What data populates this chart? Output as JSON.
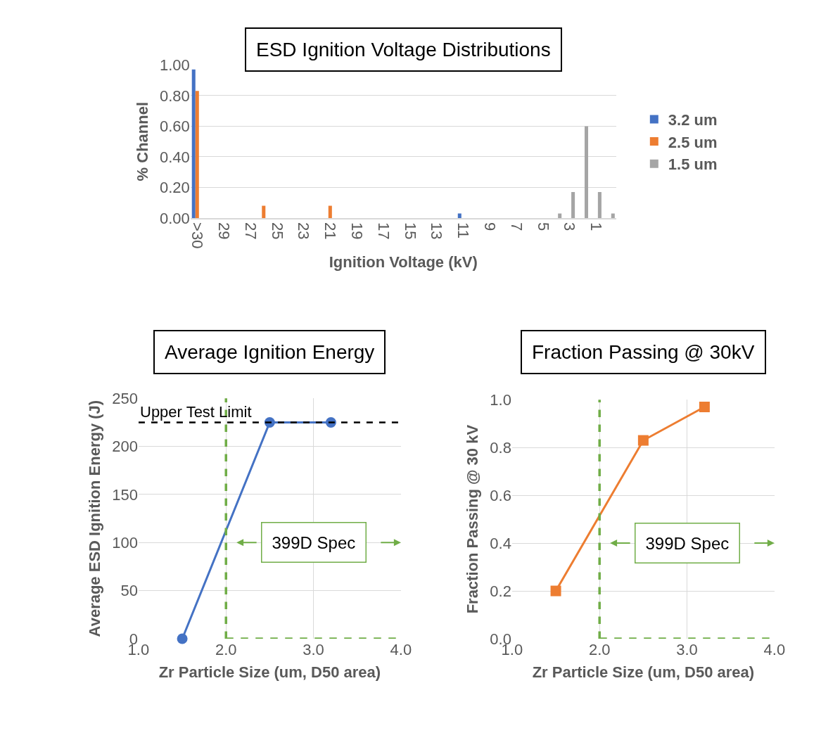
{
  "chart_data": [
    {
      "type": "bar",
      "title": "ESD Ignition Voltage Distributions",
      "xlabel": "Ignition Voltage (kV)",
      "ylabel": "% Channel",
      "categories": [
        ">30",
        null,
        "29",
        null,
        "27",
        null,
        "25",
        null,
        "23",
        null,
        "21",
        null,
        "19",
        null,
        "17",
        null,
        "15",
        null,
        "13",
        null,
        "11",
        null,
        "9",
        null,
        "7",
        null,
        "5",
        null,
        "3",
        null,
        "1",
        null
      ],
      "series": [
        {
          "name": "3.2 um",
          "color": "#4472c4",
          "values": [
            0.97,
            0,
            0,
            0,
            0,
            0,
            0,
            0,
            0,
            0,
            0,
            0,
            0,
            0,
            0,
            0,
            0,
            0,
            0,
            0,
            0.03,
            0,
            0,
            0,
            0,
            0,
            0,
            0,
            0,
            0,
            0,
            0
          ]
        },
        {
          "name": "2.5 um",
          "color": "#ed7d31",
          "values": [
            0.83,
            0,
            0,
            0,
            0,
            0.08,
            0,
            0,
            0,
            0,
            0.08,
            0,
            0,
            0,
            0,
            0,
            0,
            0,
            0,
            0,
            0,
            0,
            0,
            0,
            0,
            0,
            0,
            0,
            0,
            0,
            0,
            0
          ]
        },
        {
          "name": "1.5 um",
          "color": "#a5a5a5",
          "values": [
            0,
            0,
            0,
            0,
            0,
            0,
            0,
            0,
            0,
            0,
            0,
            0,
            0,
            0,
            0,
            0,
            0,
            0,
            0,
            0,
            0,
            0,
            0,
            0,
            0,
            0,
            0,
            0.03,
            0.17,
            0.6,
            0.17,
            0.03
          ]
        }
      ],
      "ylim": [
        0,
        1
      ],
      "yticks": [
        {
          "value": 0,
          "label": "0.00"
        },
        {
          "value": 0.2,
          "label": "0.20"
        },
        {
          "value": 0.4,
          "label": "0.40"
        },
        {
          "value": 0.6,
          "label": "0.60"
        },
        {
          "value": 0.8,
          "label": "0.80"
        },
        {
          "value": 1,
          "label": "1.00"
        }
      ],
      "grid": "y",
      "legend": "right"
    },
    {
      "type": "line",
      "title": "Average Ignition Energy",
      "xlabel": "Zr Particle Size (um, D50 area)",
      "ylabel": "Average ESD Ignition Energy (J)",
      "x": [
        1.5,
        2.5,
        3.2
      ],
      "series": [
        {
          "color": "#4472c4",
          "values": [
            0,
            225,
            225
          ]
        }
      ],
      "marker": "circle",
      "xlim": [
        1,
        4
      ],
      "xticks": [
        {
          "value": 1,
          "label": "1.0"
        },
        {
          "value": 2,
          "label": "2.0"
        },
        {
          "value": 3,
          "label": "3.0"
        },
        {
          "value": 4,
          "label": "4.0"
        }
      ],
      "ylim": [
        0,
        250
      ],
      "yticks": [
        0,
        50,
        100,
        150,
        200,
        250
      ],
      "grid": true,
      "ref_lines": [
        {
          "axis": "y",
          "value": 225,
          "label": "Upper Test Limit",
          "color": "#000000",
          "line_style": "dashed"
        },
        {
          "axis": "x",
          "value": 2,
          "label": "399D Spec",
          "color": "#70ad47",
          "line_style": "dashed"
        },
        {
          "axis": "y",
          "value": 0,
          "color": "#70ad47",
          "line_style": "dashed"
        }
      ]
    },
    {
      "type": "line",
      "title": "Fraction Passing @ 30kV",
      "xlabel": "Zr Particle Size (um, D50 area)",
      "ylabel": "Fraction Passing @ 30 kV",
      "x": [
        1.5,
        2.5,
        3.2
      ],
      "series": [
        {
          "color": "#ed7d31",
          "values": [
            0.2,
            0.83,
            0.97
          ]
        }
      ],
      "marker": "square",
      "xlim": [
        1,
        4
      ],
      "xticks": [
        {
          "value": 1,
          "label": "1.0"
        },
        {
          "value": 2,
          "label": "2.0"
        },
        {
          "value": 3,
          "label": "3.0"
        },
        {
          "value": 4,
          "label": "4.0"
        }
      ],
      "ylim": [
        0,
        1
      ],
      "yticks": [
        {
          "value": 0,
          "label": "0.0"
        },
        {
          "value": 0.2,
          "label": "0.2"
        },
        {
          "value": 0.4,
          "label": "0.4"
        },
        {
          "value": 0.6,
          "label": "0.6"
        },
        {
          "value": 0.8,
          "label": "0.8"
        },
        {
          "value": 1,
          "label": "1.0"
        }
      ],
      "grid": true,
      "ref_lines": [
        {
          "axis": "x",
          "value": 2,
          "label": "399D Spec",
          "color": "#70ad47",
          "line_style": "dashed"
        },
        {
          "axis": "y",
          "value": 0,
          "color": "#70ad47",
          "line_style": "dashed"
        }
      ]
    }
  ]
}
